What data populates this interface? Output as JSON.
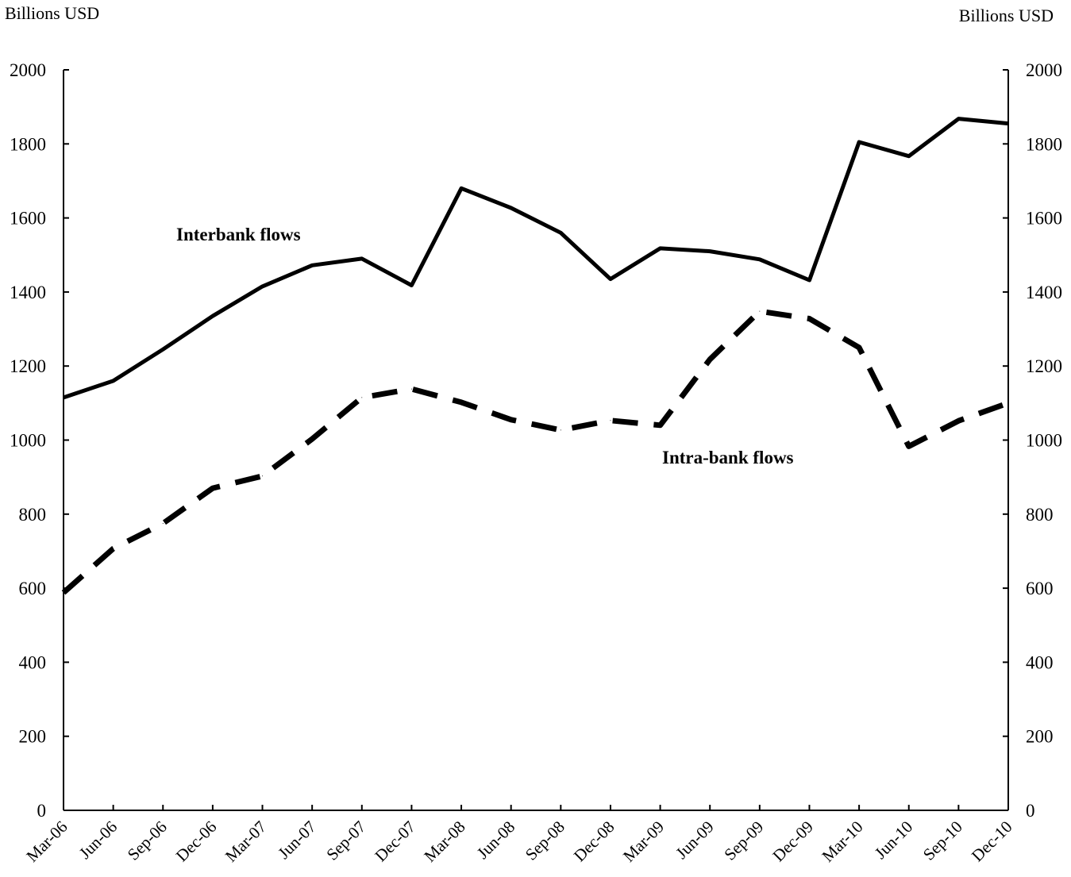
{
  "chart_data": {
    "type": "line",
    "title": "",
    "ylabel_left": "Billions USD",
    "ylabel_right": "Billions USD",
    "ylim": [
      0,
      2000
    ],
    "yticks": [
      0,
      200,
      400,
      600,
      800,
      1000,
      1200,
      1400,
      1600,
      1800,
      2000
    ],
    "grid": false,
    "legend": "none",
    "categories": [
      "Mar-06",
      "Jun-06",
      "Sep-06",
      "Dec-06",
      "Mar-07",
      "Jun-07",
      "Sep-07",
      "Dec-07",
      "Mar-08",
      "Jun-08",
      "Sep-08",
      "Dec-08",
      "Mar-09",
      "Jun-09",
      "Sep-09",
      "Dec-09",
      "Mar-10",
      "Jun-10",
      "Sep-10",
      "Dec-10"
    ],
    "series": [
      {
        "name": "Interbank flows",
        "style": "solid",
        "color": "#000000",
        "values": [
          1115,
          1160,
          1245,
          1335,
          1415,
          1472,
          1490,
          1418,
          1680,
          1627,
          1560,
          1435,
          1518,
          1510,
          1488,
          1432,
          1805,
          1767,
          1868,
          1855
        ]
      },
      {
        "name": "Intra-bank flows",
        "style": "dashed",
        "color": "#000000",
        "values": [
          588,
          707,
          775,
          870,
          903,
          1003,
          1115,
          1138,
          1102,
          1055,
          1027,
          1053,
          1040,
          1218,
          1348,
          1328,
          1250,
          983,
          1052,
          1100
        ]
      }
    ]
  }
}
